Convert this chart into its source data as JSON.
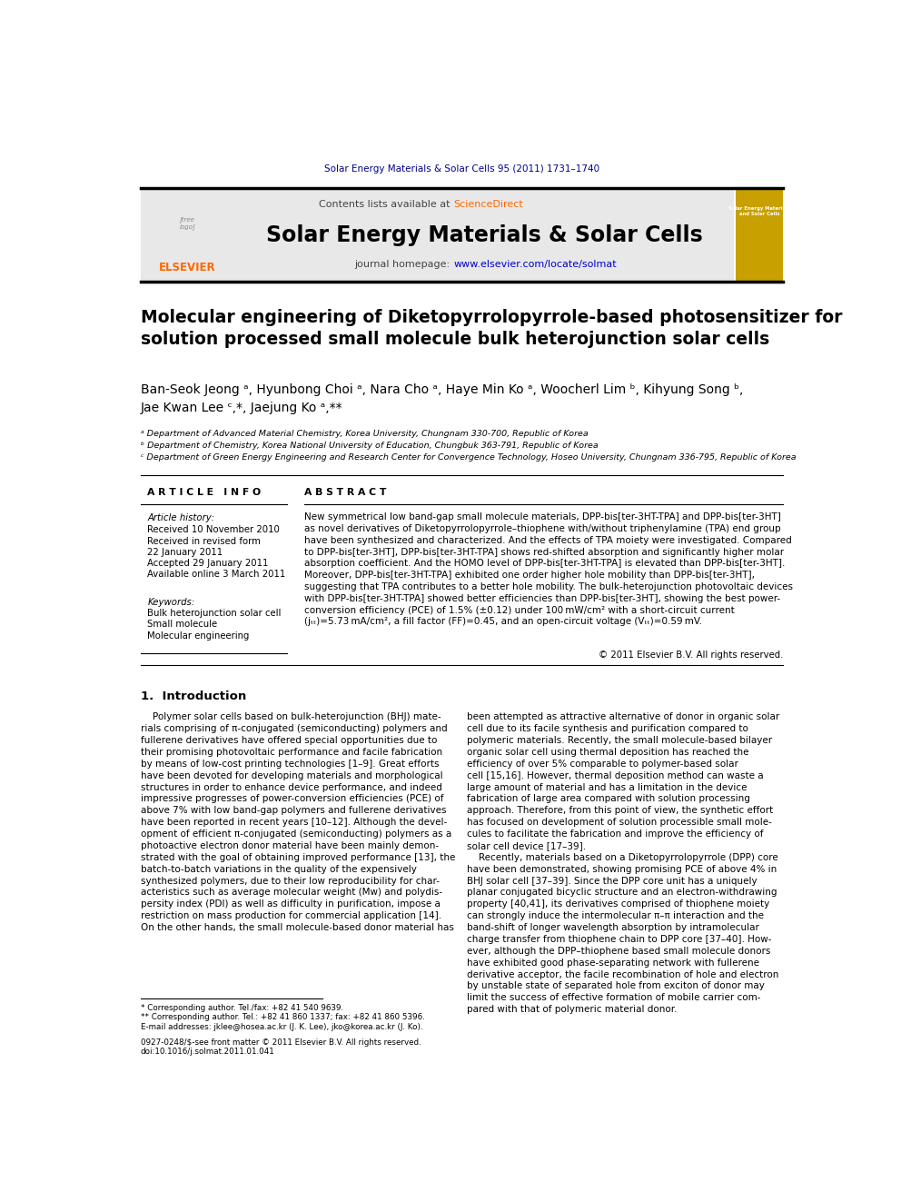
{
  "page_width": 9.92,
  "page_height": 13.23,
  "bg_color": "#ffffff",
  "journal_ref": "Solar Energy Materials & Solar Cells 95 (2011) 1731–1740",
  "journal_ref_color": "#00008B",
  "header_bg": "#e8e8e8",
  "header_text1": "Contents lists available at ",
  "header_sciencedirect": "ScienceDirect",
  "header_sciencedirect_color": "#FF6600",
  "header_journal_name": "Solar Energy Materials & Solar Cells",
  "header_url_prefix": "journal homepage: ",
  "header_url_link": "www.elsevier.com/locate/solmat",
  "header_url_color": "#0000CD",
  "title": "Molecular engineering of Diketopyrrolopyrrole-based photosensitizer for\nsolution processed small molecule bulk heterojunction solar cells",
  "authors_line1": "Ban-Seok Jeong ᵃ, Hyunbong Choi ᵃ, Nara Cho ᵃ, Haye Min Ko ᵃ, Woocherl Lim ᵇ, Kihyung Song ᵇ,",
  "authors_line2": "Jae Kwan Lee ᶜ,*, Jaejung Ko ᵃ,**",
  "affil_a": "ᵃ Department of Advanced Material Chemistry, Korea University, Chungnam 330-700, Republic of Korea",
  "affil_b": "ᵇ Department of Chemistry, Korea National University of Education, Chungbuk 363-791, Republic of Korea",
  "affil_c": "ᶜ Department of Green Energy Engineering and Research Center for Convergence Technology, Hoseo University, Chungnam 336-795, Republic of Korea",
  "article_info_header": "A R T I C L E   I N F O",
  "abstract_header": "A B S T R A C T",
  "article_history_label": "Article history:",
  "received": "Received 10 November 2010",
  "received_revised": "Received in revised form",
  "revised_date": "22 January 2011",
  "accepted": "Accepted 29 January 2011",
  "available": "Available online 3 March 2011",
  "keywords_label": "Keywords:",
  "keyword1": "Bulk heterojunction solar cell",
  "keyword2": "Small molecule",
  "keyword3": "Molecular engineering",
  "abstract_text": "New symmetrical low band-gap small molecule materials, DPP-bis[ter-3HT-TPA] and DPP-bis[ter-3HT]\nas novel derivatives of Diketopyrrolopyrrole–thiophene with/without triphenylamine (TPA) end group\nhave been synthesized and characterized. And the effects of TPA moiety were investigated. Compared\nto DPP-bis[ter-3HT], DPP-bis[ter-3HT-TPA] shows red-shifted absorption and significantly higher molar\nabsorption coefficient. And the HOMO level of DPP-bis[ter-3HT-TPA] is elevated than DPP-bis[ter-3HT].\nMoreover, DPP-bis[ter-3HT-TPA] exhibited one order higher hole mobility than DPP-bis[ter-3HT],\nsuggesting that TPA contributes to a better hole mobility. The bulk-heterojunction photovoltaic devices\nwith DPP-bis[ter-3HT-TPA] showed better efficiencies than DPP-bis[ter-3HT], showing the best power-\nconversion efficiency (PCE) of 1.5% (±0.12) under 100 mW/cm² with a short-circuit current\n(jₜₜ)=5.73 mA/cm², a fill factor (FF)=0.45, and an open-circuit voltage (Vₜₜ)=0.59 mV.",
  "copyright": "© 2011 Elsevier B.V. All rights reserved.",
  "intro_heading": "1.  Introduction",
  "intro_col1": "    Polymer solar cells based on bulk-heterojunction (BHJ) mate-\nrials comprising of π-conjugated (semiconducting) polymers and\nfullerene derivatives have offered special opportunities due to\ntheir promising photovoltaic performance and facile fabrication\nby means of low-cost printing technologies [1–9]. Great efforts\nhave been devoted for developing materials and morphological\nstructures in order to enhance device performance, and indeed\nimpressive progresses of power-conversion efficiencies (PCE) of\nabove 7% with low band-gap polymers and fullerene derivatives\nhave been reported in recent years [10–12]. Although the devel-\nopment of efficient π-conjugated (semiconducting) polymers as a\nphotoactive electron donor material have been mainly demon-\nstrated with the goal of obtaining improved performance [13], the\nbatch-to-batch variations in the quality of the expensively\nsynthesized polymers, due to their low reproducibility for char-\nacteristics such as average molecular weight (Mw) and polydis-\npersity index (PDI) as well as difficulty in purification, impose a\nrestriction on mass production for commercial application [14].\nOn the other hands, the small molecule-based donor material has",
  "intro_col2": "been attempted as attractive alternative of donor in organic solar\ncell due to its facile synthesis and purification compared to\npolymeric materials. Recently, the small molecule-based bilayer\norganic solar cell using thermal deposition has reached the\nefficiency of over 5% comparable to polymer-based solar\ncell [15,16]. However, thermal deposition method can waste a\nlarge amount of material and has a limitation in the device\nfabrication of large area compared with solution processing\napproach. Therefore, from this point of view, the synthetic effort\nhas focused on development of solution processible small mole-\ncules to facilitate the fabrication and improve the efficiency of\nsolar cell device [17–39].\n    Recently, materials based on a Diketopyrrolopyrrole (DPP) core\nhave been demonstrated, showing promising PCE of above 4% in\nBHJ solar cell [37–39]. Since the DPP core unit has a uniquely\nplanar conjugated bicyclic structure and an electron-withdrawing\nproperty [40,41], its derivatives comprised of thiophene moiety\ncan strongly induce the intermolecular π–π interaction and the\nband-shift of longer wavelength absorption by intramolecular\ncharge transfer from thiophene chain to DPP core [37–40]. How-\never, although the DPP–thiophene based small molecule donors\nhave exhibited good phase-separating network with fullerene\nderivative acceptor, the facile recombination of hole and electron\nby unstable state of separated hole from exciton of donor may\nlimit the success of effective formation of mobile carrier com-\npared with that of polymeric material donor.",
  "footnote1": "* Corresponding author. Tel./fax: +82 41 540 9639.",
  "footnote2": "** Corresponding author. Tel.: +82 41 860 1337; fax: +82 41 860 5396.",
  "footnote3": "E-mail addresses: jklee@hosea.ac.kr (J. K. Lee), jko@korea.ac.kr (J. Ko).",
  "issn_line": "0927-0248/$-see front matter © 2011 Elsevier B.V. All rights reserved.",
  "doi_line": "doi:10.1016/j.solmat.2011.01.041",
  "text_color": "#000000",
  "link_color": "#0000CD",
  "orange_color": "#FF6600"
}
